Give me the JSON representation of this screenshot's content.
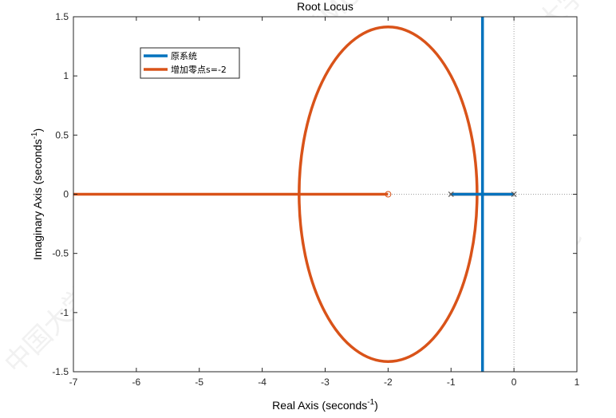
{
  "chart_data": {
    "type": "line",
    "title": "Root Locus",
    "xlabel": "Real Axis (seconds",
    "ylabel": "Imaginary Axis (seconds",
    "label_exponent": "-1",
    "label_close": ")",
    "xlim": [
      -7,
      1
    ],
    "ylim": [
      -1.5,
      1.5
    ],
    "xticks": [
      "-7",
      "-6",
      "-5",
      "-4",
      "-3",
      "-2",
      "-1",
      "0",
      "1"
    ],
    "yticks": [
      "-1.5",
      "-1",
      "-0.5",
      "0",
      "0.5",
      "1",
      "1.5"
    ],
    "grid": false,
    "legend_position": "top-left",
    "series": [
      {
        "name": "原系统",
        "color": "#0072BD",
        "branches": [
          {
            "x": [
              -1,
              -0.5
            ],
            "y": [
              0,
              0
            ]
          },
          {
            "x": [
              0,
              -0.5
            ],
            "y": [
              0,
              0
            ]
          },
          {
            "x": [
              -0.5,
              -0.5
            ],
            "y": [
              0,
              1.5
            ]
          },
          {
            "x": [
              -0.5,
              -0.5
            ],
            "y": [
              0,
              -1.5
            ]
          }
        ],
        "poles": [
          [
            -1,
            0
          ],
          [
            0,
            0
          ]
        ],
        "zeros": []
      },
      {
        "name": "增加零点s=-2",
        "color": "#D95319",
        "branches": [
          {
            "x": [
              -1,
              -0.586
            ],
            "y": [
              0,
              0
            ]
          },
          {
            "x": [
              0,
              -0.586
            ],
            "y": [
              0,
              0
            ]
          },
          {
            "type": "circle",
            "center": [
              -2,
              0
            ],
            "radius": 1.414
          },
          {
            "x": [
              -3.414,
              -7
            ],
            "y": [
              0,
              0
            ]
          },
          {
            "x": [
              -3.414,
              -2
            ],
            "y": [
              0,
              0
            ]
          }
        ],
        "poles": [
          [
            -1,
            0
          ],
          [
            0,
            0
          ]
        ],
        "zeros": [
          [
            -2,
            0
          ]
        ]
      }
    ],
    "reference_lines": [
      {
        "axis": "x",
        "value": 0
      },
      {
        "axis": "y",
        "value": 0
      }
    ]
  },
  "watermark": "中国大学MOOC"
}
